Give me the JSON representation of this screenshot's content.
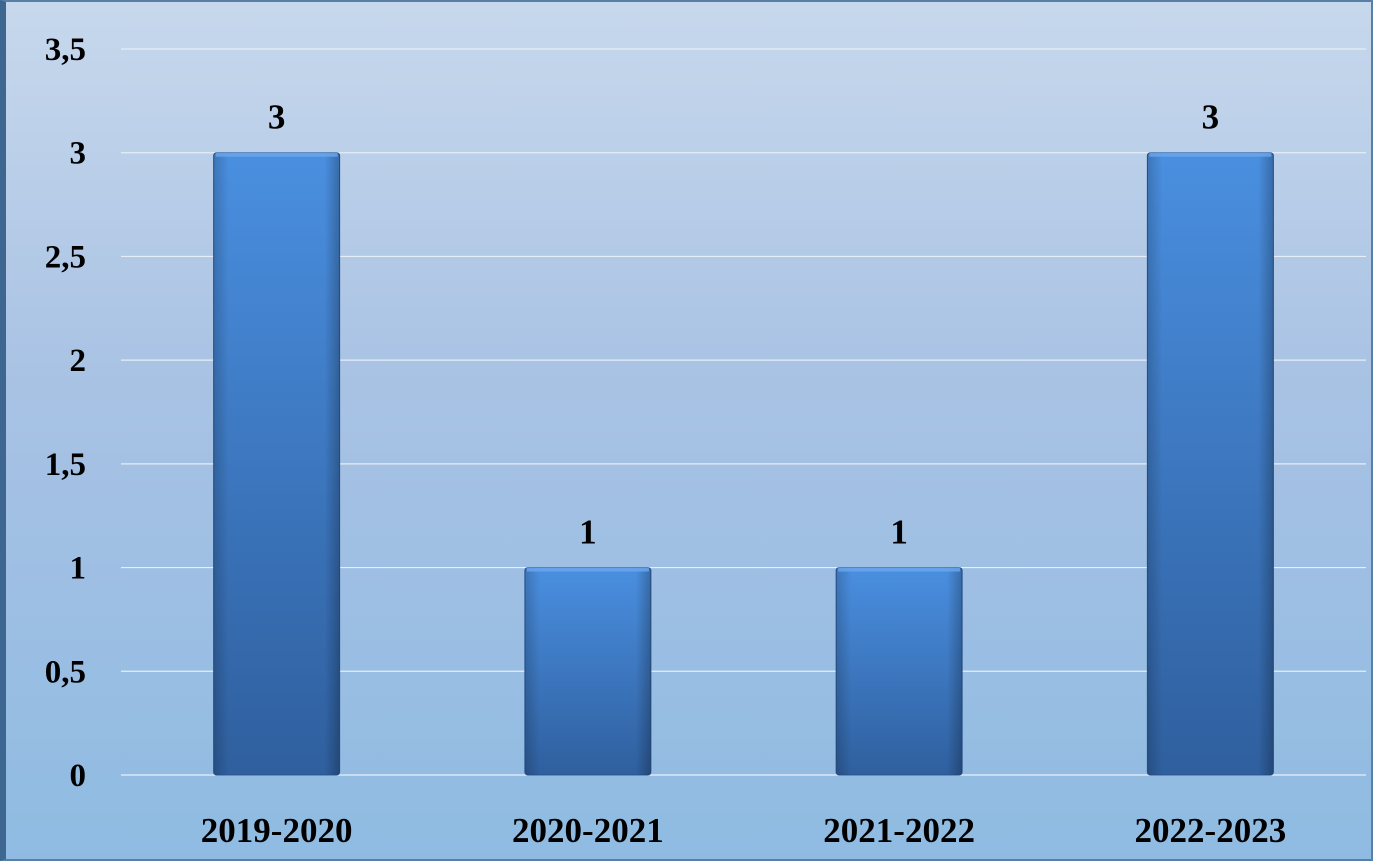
{
  "chart_data": {
    "type": "bar",
    "title": "",
    "xlabel": "",
    "ylabel": "",
    "categories": [
      "2019-2020",
      "2020-2021",
      "2021-2022",
      "2022-2023"
    ],
    "values": [
      3,
      1,
      1,
      3
    ],
    "data_labels": [
      "3",
      "1",
      "1",
      "3"
    ],
    "ylim": [
      0,
      3.5
    ],
    "yticks": [
      0,
      0.5,
      1,
      1.5,
      2,
      2.5,
      3,
      3.5
    ],
    "ytick_labels": [
      "0",
      "0,5",
      "1",
      "1,5",
      "2",
      "2,5",
      "3",
      "3,5"
    ],
    "grid": true,
    "legend": "none",
    "colors": {
      "bar_top": "#4a8fe0",
      "bar_bottom": "#2f5f9e",
      "background_top": "#c7d8ec",
      "background_bottom": "#8fbbe2",
      "gridline": "#e6eef8"
    }
  }
}
